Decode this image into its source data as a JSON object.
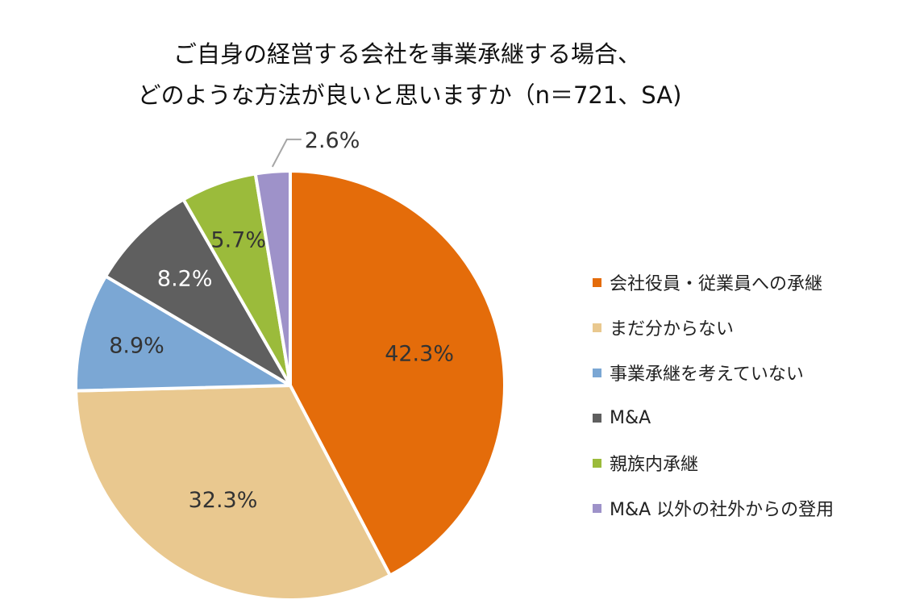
{
  "title": {
    "line1": "ご自身の経営する会社を事業承継する場合、",
    "line2": "どのような方法が良いと思いますか（n＝721、SA)"
  },
  "chart_data": {
    "type": "pie",
    "categories": [
      "会社役員・従業員への承継",
      "まだ分からない",
      "事業承継を考えていない",
      "M&A",
      "親族内承継",
      "M&A 以外の社外からの登用"
    ],
    "values": [
      42.3,
      32.3,
      8.9,
      8.2,
      5.7,
      2.6
    ],
    "labels": [
      "42.3%",
      "32.3%",
      "8.9%",
      "8.2%",
      "5.7%",
      "2.6%"
    ],
    "colors": [
      "#E46C0A",
      "#E9C88F",
      "#7BA7D4",
      "#5F5F5F",
      "#9BBB3B",
      "#9E92C9"
    ],
    "start": "12 o'clock, clockwise",
    "legend_position": "right"
  }
}
